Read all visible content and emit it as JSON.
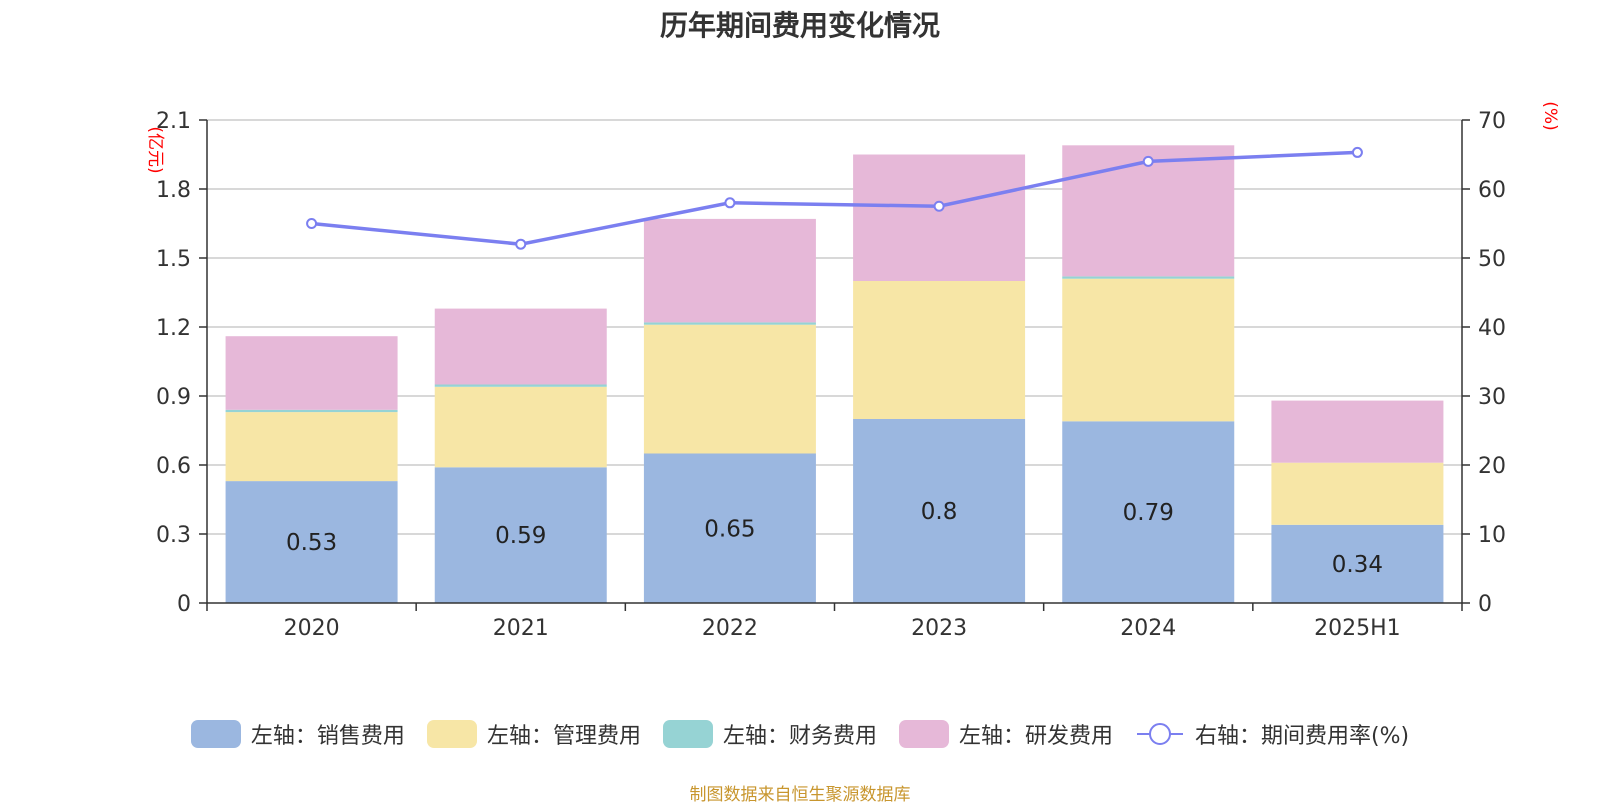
{
  "chart_data": {
    "type": "bar",
    "title": "历年期间费用变化情况",
    "categories": [
      "2020",
      "2021",
      "2022",
      "2023",
      "2024",
      "2025H1"
    ],
    "left_axis": {
      "unit": "(亿元)",
      "ylim": [
        0,
        2.1
      ],
      "ticks": [
        "0",
        "0.3",
        "0.6",
        "0.9",
        "1.2",
        "1.5",
        "1.8",
        "2.1"
      ]
    },
    "right_axis": {
      "unit": "(%)",
      "ylim": [
        0,
        70
      ],
      "ticks": [
        "0",
        "10",
        "20",
        "30",
        "40",
        "50",
        "60",
        "70"
      ]
    },
    "series": [
      {
        "name": "左轴：销售费用",
        "type": "bar",
        "stack": true,
        "color": "#9bb7e0",
        "values": [
          0.53,
          0.59,
          0.65,
          0.8,
          0.79,
          0.34
        ],
        "labels": [
          "0.53",
          "0.59",
          "0.65",
          "0.8",
          "0.79",
          "0.34"
        ]
      },
      {
        "name": "左轴：管理费用",
        "type": "bar",
        "stack": true,
        "color": "#f7e6a6",
        "values": [
          0.3,
          0.35,
          0.56,
          0.6,
          0.62,
          0.27
        ]
      },
      {
        "name": "左轴：财务费用",
        "type": "bar",
        "stack": true,
        "color": "#96d3d4",
        "values": [
          0.01,
          0.01,
          0.01,
          0.0,
          0.01,
          0.0
        ]
      },
      {
        "name": "左轴：研发费用",
        "type": "bar",
        "stack": true,
        "color": "#e6b8d8",
        "values": [
          0.32,
          0.33,
          0.45,
          0.55,
          0.57,
          0.27
        ]
      },
      {
        "name": "右轴：期间费用率(%)",
        "type": "line",
        "axis": "right",
        "color": "#7b7ff0",
        "values": [
          55.0,
          52.0,
          58.0,
          57.5,
          64.0,
          65.3
        ]
      }
    ],
    "grid": true,
    "legend_position": "bottom"
  },
  "source": "制图数据来自恒生聚源数据库"
}
